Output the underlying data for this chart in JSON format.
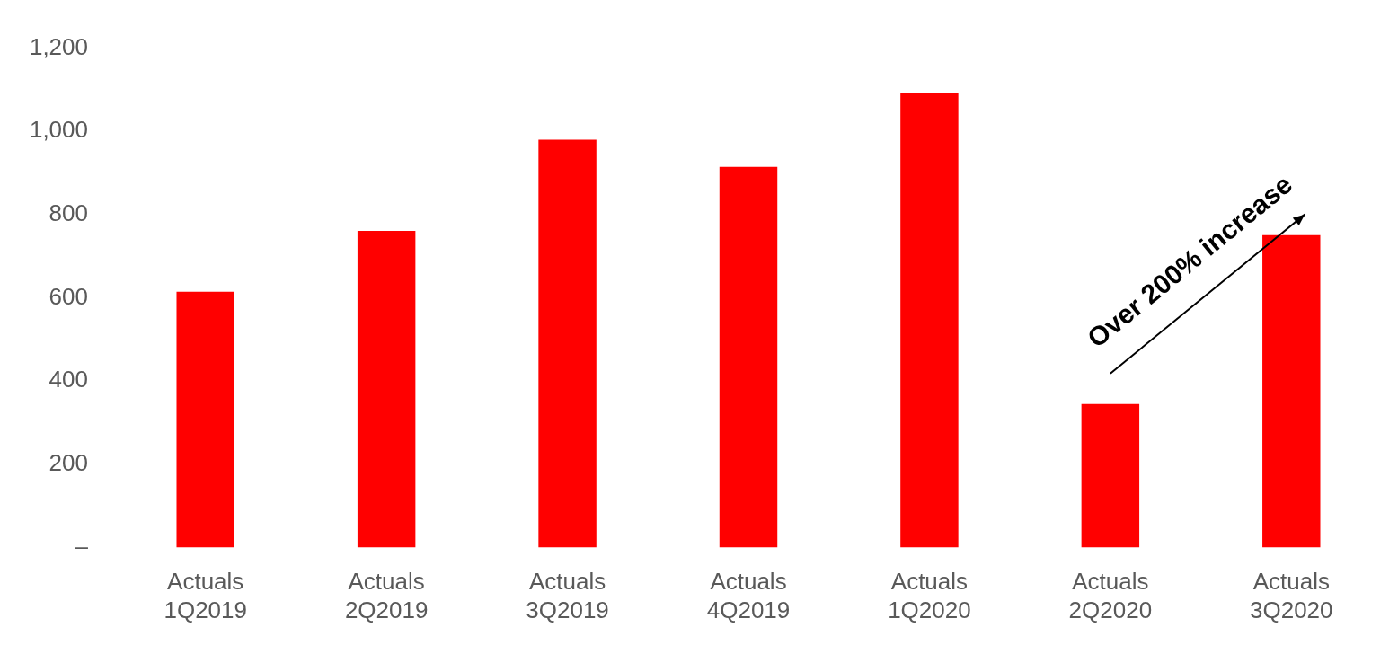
{
  "chart_data": {
    "type": "bar",
    "categories": [
      "Actuals\n1Q2019",
      "Actuals\n2Q2019",
      "Actuals\n3Q2019",
      "Actuals\n4Q2019",
      "Actuals\n1Q2020",
      "Actuals\n2Q2020",
      "Actuals\n3Q2020"
    ],
    "values": [
      615,
      761,
      980,
      915,
      1093,
      345,
      751
    ],
    "color": "#ff0000",
    "ylim": [
      0,
      1200
    ],
    "yticks": [
      {
        "value": 0,
        "label": "–"
      },
      {
        "value": 200,
        "label": "200"
      },
      {
        "value": 400,
        "label": "400"
      },
      {
        "value": 600,
        "label": "600"
      },
      {
        "value": 800,
        "label": "800"
      },
      {
        "value": 1000,
        "label": "1,000"
      },
      {
        "value": 1200,
        "label": "1,200"
      }
    ],
    "grid": false,
    "legend": false,
    "annotations": [
      "Over 200% increase"
    ]
  }
}
